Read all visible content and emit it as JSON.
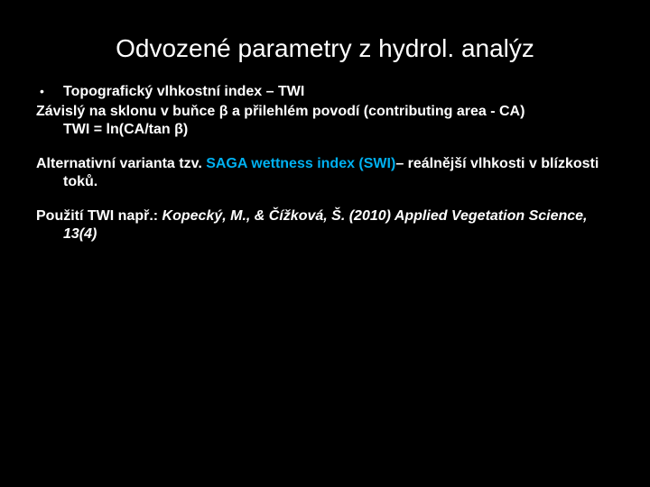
{
  "colors": {
    "background": "#000000",
    "text": "#ffffff",
    "accent": "#00b0f0"
  },
  "title": "Odvozené parametry z hydrol. analýz",
  "bullet": {
    "marker": "•",
    "text": "Topografický vlhkostní index – TWI"
  },
  "lines": {
    "l1": "Závislý na sklonu v buňce β a přilehlém povodí (contributing area - CA)",
    "l2": "TWI = ln(CA/tan β)"
  },
  "alt": {
    "pre": "Alternativní varianta tzv. ",
    "highlight": "SAGA wettness index  (SWI)",
    "post": "– reálnější vlhkosti v blízkosti toků."
  },
  "ref": {
    "pre": "Použití TWI např.: ",
    "cite": "Kopecký, M., & Čížková, Š. (2010) Applied Vegetation Science, 13(4)"
  }
}
